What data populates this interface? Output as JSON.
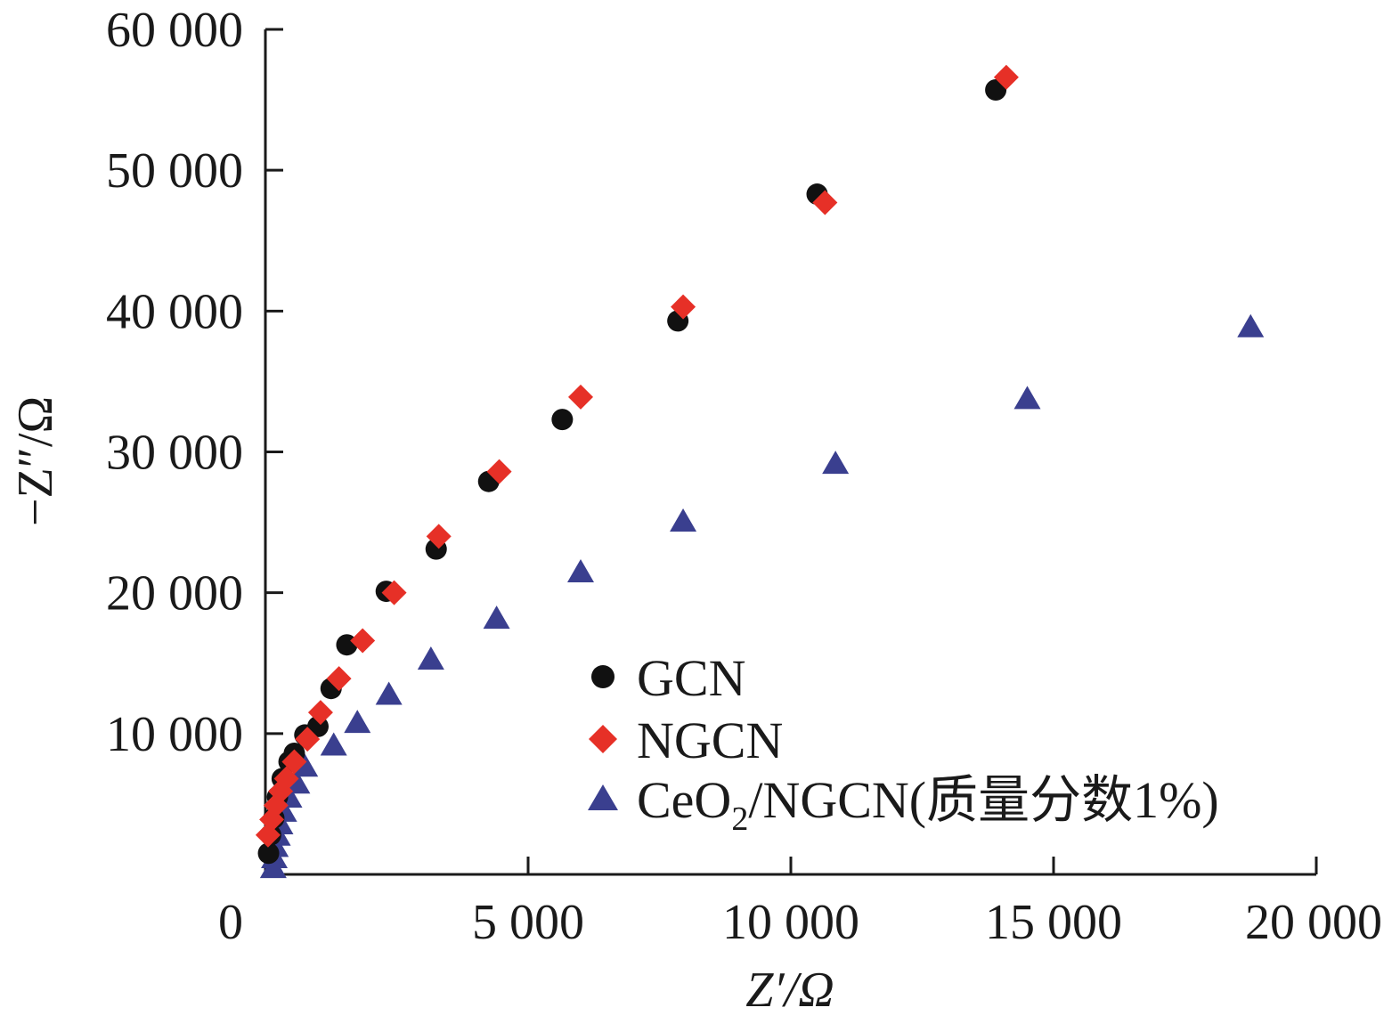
{
  "chart_data": {
    "type": "scatter",
    "title": "",
    "xlabel": "Z′/Ω",
    "ylabel": "−Z″/Ω",
    "xlim": [
      0,
      20000
    ],
    "ylim": [
      0,
      60000
    ],
    "xticks": [
      0,
      5000,
      10000,
      15000,
      20000
    ],
    "xtick_labels": [
      "0",
      "5 000",
      "10 000",
      "15 000",
      "20 000"
    ],
    "yticks": [
      10000,
      20000,
      30000,
      40000,
      50000,
      60000
    ],
    "ytick_labels": [
      "10 000",
      "20 000",
      "30 000",
      "40 000",
      "50 000",
      "60 000"
    ],
    "grid": false,
    "legend_position": "lower-right",
    "series": [
      {
        "name": "GCN",
        "marker": "circle",
        "color": "#111111",
        "points": [
          [
            60,
            1500
          ],
          [
            100,
            2800
          ],
          [
            160,
            4000
          ],
          [
            230,
            5500
          ],
          [
            320,
            6800
          ],
          [
            450,
            8000
          ],
          [
            550,
            8600
          ],
          [
            750,
            9900
          ],
          [
            1000,
            10500
          ],
          [
            1250,
            13200
          ],
          [
            1550,
            16300
          ],
          [
            2300,
            20100
          ],
          [
            3250,
            23100
          ],
          [
            4250,
            27900
          ],
          [
            5650,
            32300
          ],
          [
            7850,
            39300
          ],
          [
            10500,
            48300
          ],
          [
            13900,
            55700
          ]
        ]
      },
      {
        "name": "NGCN",
        "marker": "diamond",
        "color": "#e63027",
        "points": [
          [
            50,
            2800
          ],
          [
            120,
            3900
          ],
          [
            200,
            4900
          ],
          [
            290,
            5900
          ],
          [
            400,
            6800
          ],
          [
            550,
            8000
          ],
          [
            800,
            9600
          ],
          [
            1050,
            11500
          ],
          [
            1400,
            13900
          ],
          [
            1850,
            16600
          ],
          [
            2450,
            20000
          ],
          [
            3300,
            24000
          ],
          [
            4450,
            28600
          ],
          [
            6000,
            33900
          ],
          [
            7950,
            40300
          ],
          [
            10650,
            47700
          ],
          [
            14100,
            56600
          ]
        ]
      },
      {
        "name": "CeO2/NGCN(质量分数1%)",
        "marker": "triangle",
        "color": "#3a3f8f",
        "points": [
          [
            150,
            500
          ],
          [
            170,
            1200
          ],
          [
            190,
            2000
          ],
          [
            230,
            2800
          ],
          [
            280,
            3600
          ],
          [
            350,
            4500
          ],
          [
            450,
            5500
          ],
          [
            600,
            6500
          ],
          [
            750,
            7700
          ],
          [
            1300,
            9200
          ],
          [
            1750,
            10800
          ],
          [
            2350,
            12800
          ],
          [
            3150,
            15300
          ],
          [
            4400,
            18200
          ],
          [
            6000,
            21500
          ],
          [
            7950,
            25100
          ],
          [
            10850,
            29200
          ],
          [
            14500,
            33800
          ],
          [
            18750,
            38900
          ]
        ]
      }
    ],
    "legend": [
      {
        "label": "GCN",
        "marker": "circle",
        "color": "#111111"
      },
      {
        "label": "NGCN",
        "marker": "diamond",
        "color": "#e63027"
      },
      {
        "label_main": "CeO",
        "label_sub": "2",
        "label_rest": "/NGCN(质量分数1%)",
        "marker": "triangle",
        "color": "#3a3f8f"
      }
    ]
  }
}
